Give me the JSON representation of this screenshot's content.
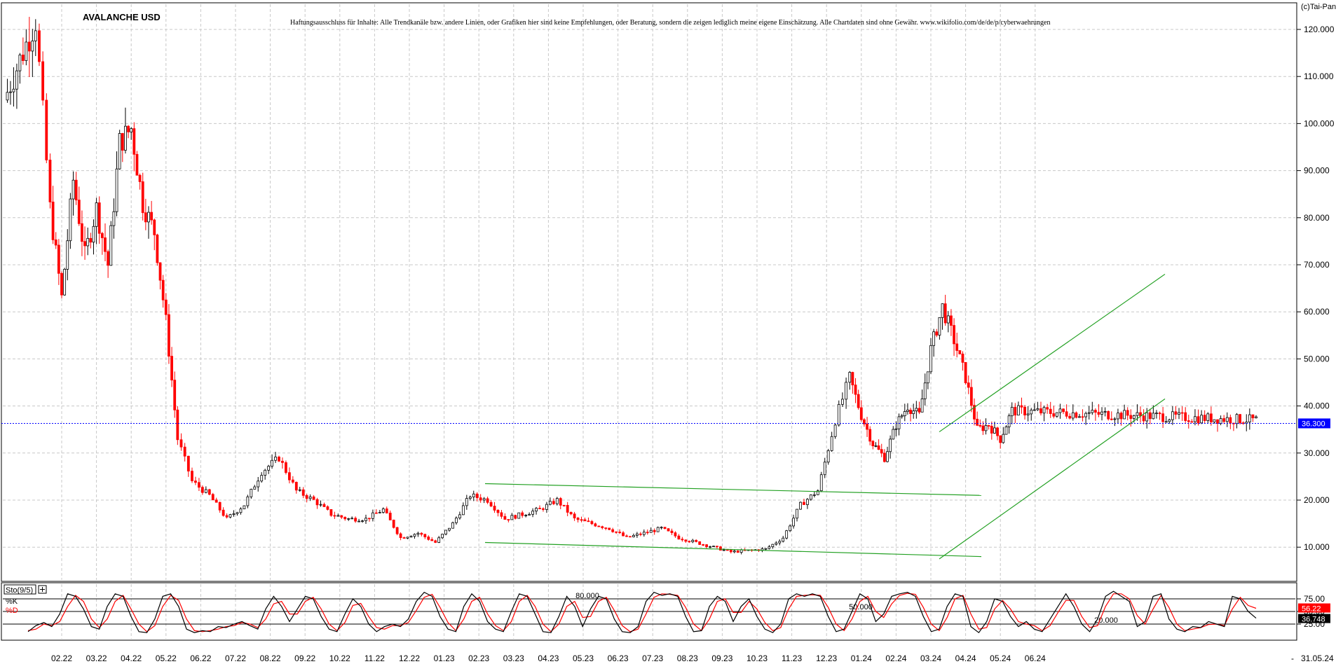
{
  "chart_data": [
    {
      "type": "candlestick",
      "title": "AVALANCHE USD",
      "disclaimer": "Haftungsausschluss für Inhalte: Alle Trendkanäle bzw. andere Linien, oder Grafiken hier sind keine Empfehlungen, oder Beratung, sondern die zeigen lediglich meine eigene Einschätzung. Alle Chartdaten sind ohne Gewähr. www.wikifolio.com/de/de/p/cyberwaehrungen",
      "copyright": "(c)Tai-Pan",
      "x_tick_labels": [
        "02.22",
        "03.22",
        "04.22",
        "05.22",
        "06.22",
        "07.22",
        "08.22",
        "09.22",
        "10.22",
        "11.22",
        "12.22",
        "01.23",
        "02.23",
        "03.23",
        "04.23",
        "05.23",
        "06.23",
        "07.23",
        "08.23",
        "09.23",
        "10.23",
        "11.23",
        "12.23",
        "01.24",
        "02.24",
        "03.24",
        "04.24",
        "05.24",
        "06.24"
      ],
      "x_end_label": "31.05.24",
      "y_ticks": [
        "10.000",
        "20.000",
        "30.000",
        "40.000",
        "50.000",
        "60.000",
        "70.000",
        "80.000",
        "90.000",
        "100.000",
        "110.000",
        "120.000"
      ],
      "ylim": [
        2,
        125
      ],
      "last_price": 36.3,
      "last_price_label": "36.300",
      "grid": true,
      "price_path": [
        [
          "01.22",
          105
        ],
        [
          "01.22",
          122
        ],
        [
          "02.22",
          82
        ],
        [
          "02.22",
          63
        ],
        [
          "02.22",
          88
        ],
        [
          "03.22",
          72
        ],
        [
          "03.22",
          82
        ],
        [
          "03.22",
          70
        ],
        [
          "04.22",
          96
        ],
        [
          "04.22",
          99
        ],
        [
          "04.22",
          83
        ],
        [
          "05.22",
          77
        ],
        [
          "05.22",
          58
        ],
        [
          "05.22",
          33
        ],
        [
          "06.22",
          24
        ],
        [
          "06.22",
          21
        ],
        [
          "07.22",
          16
        ],
        [
          "07.22",
          19
        ],
        [
          "08.22",
          26
        ],
        [
          "08.22",
          29
        ],
        [
          "09.22",
          22
        ],
        [
          "09.22",
          20
        ],
        [
          "10.22",
          17
        ],
        [
          "10.22",
          16
        ],
        [
          "11.22",
          16
        ],
        [
          "11.22",
          18
        ],
        [
          "12.22",
          12
        ],
        [
          "12.22",
          13
        ],
        [
          "01.23",
          11
        ],
        [
          "01.23",
          15
        ],
        [
          "02.23",
          21
        ],
        [
          "02.23",
          20
        ],
        [
          "03.23",
          16
        ],
        [
          "03.23",
          17
        ],
        [
          "04.23",
          18
        ],
        [
          "04.23",
          20
        ],
        [
          "05.23",
          16
        ],
        [
          "05.23",
          15
        ],
        [
          "06.23",
          14
        ],
        [
          "06.23",
          12
        ],
        [
          "07.23",
          13
        ],
        [
          "07.23",
          14
        ],
        [
          "08.23",
          12
        ],
        [
          "08.23",
          11
        ],
        [
          "09.23",
          10
        ],
        [
          "09.23",
          9
        ],
        [
          "10.23",
          9.3
        ],
        [
          "10.23",
          9.6
        ],
        [
          "11.23",
          12
        ],
        [
          "11.23",
          19
        ],
        [
          "12.23",
          22
        ],
        [
          "12.23",
          37
        ],
        [
          "01.24",
          46
        ],
        [
          "01.24",
          38
        ],
        [
          "01.24",
          32
        ],
        [
          "02.24",
          29
        ],
        [
          "02.24",
          36
        ],
        [
          "02.24",
          40
        ],
        [
          "03.24",
          38
        ],
        [
          "03.24",
          52
        ],
        [
          "03.24",
          61
        ],
        [
          "04.24",
          54
        ],
        [
          "04.24",
          46
        ],
        [
          "04.24",
          35
        ],
        [
          "05.24",
          36
        ],
        [
          "05.24",
          33
        ],
        [
          "05.24",
          39
        ],
        [
          "06.24",
          37
        ]
      ],
      "annotations": [
        {
          "name": "falling-channel-upper",
          "from": [
            "12.22",
            23.5
          ],
          "to": [
            "11.23",
            21
          ]
        },
        {
          "name": "falling-channel-lower",
          "from": [
            "12.22",
            11
          ],
          "to": [
            "12.23",
            8
          ]
        },
        {
          "name": "rising-channel-upper",
          "from": [
            "12.23",
            34.5
          ],
          "to": [
            "04.24",
            68
          ]
        },
        {
          "name": "rising-channel-lower",
          "from": [
            "12.23",
            7.5
          ],
          "to": [
            "04.24",
            41.5
          ]
        }
      ],
      "colors": {
        "up": "#000000",
        "down": "#ff0000",
        "channel": "#22a022",
        "price_line": "#0000ff",
        "grid": "#c8c8c8"
      }
    },
    {
      "type": "line",
      "indicator": "Sto(9/5)",
      "ylim": [
        0,
        100
      ],
      "y_ticks": [
        "75.00",
        "50.00",
        "25.00"
      ],
      "levels": [
        {
          "value": 80,
          "label": "80.000"
        },
        {
          "value": 50,
          "label": "50.000"
        },
        {
          "value": 20,
          "label": "20.000"
        }
      ],
      "series": [
        {
          "name": "%K",
          "color": "#000000",
          "last": 36.748,
          "last_label": "36.748"
        },
        {
          "name": "%D",
          "color": "#ff0000",
          "last": 56.22,
          "last_label": "56.22"
        }
      ],
      "k_values": [
        10,
        22,
        28,
        20,
        45,
        85,
        80,
        55,
        20,
        15,
        60,
        85,
        80,
        40,
        10,
        8,
        35,
        80,
        85,
        60,
        15,
        8,
        12,
        10,
        20,
        18,
        25,
        30,
        22,
        15,
        55,
        80,
        60,
        30,
        55,
        80,
        75,
        40,
        15,
        10,
        45,
        75,
        60,
        25,
        10,
        20,
        25,
        20,
        35,
        70,
        88,
        80,
        40,
        15,
        10,
        60,
        85,
        70,
        30,
        15,
        10,
        50,
        85,
        80,
        45,
        10,
        8,
        40,
        80,
        60,
        20,
        55,
        80,
        75,
        35,
        10,
        8,
        20,
        70,
        88,
        82,
        85,
        80,
        40,
        10,
        12,
        60,
        80,
        70,
        30,
        60,
        75,
        40,
        15,
        8,
        25,
        75,
        85,
        80,
        85,
        80,
        40,
        10,
        15,
        50,
        85,
        75,
        30,
        45,
        80,
        85,
        88,
        80,
        40,
        10,
        15,
        60,
        85,
        80,
        20,
        8,
        30,
        75,
        70,
        40,
        20,
        30,
        15,
        10,
        35,
        60,
        85,
        60,
        25,
        10,
        35,
        80,
        90,
        80,
        70,
        20,
        30,
        80,
        85,
        35,
        15,
        10,
        20,
        18,
        30,
        25,
        20,
        80,
        75,
        50,
        36.7
      ],
      "d_values": [
        12,
        15,
        25,
        22,
        30,
        60,
        82,
        70,
        35,
        18,
        35,
        70,
        82,
        55,
        25,
        10,
        22,
        60,
        82,
        72,
        35,
        12,
        10,
        12,
        15,
        20,
        22,
        28,
        25,
        18,
        35,
        65,
        70,
        45,
        45,
        70,
        78,
        55,
        25,
        12,
        28,
        62,
        66,
        40,
        18,
        15,
        22,
        22,
        28,
        52,
        78,
        84,
        58,
        28,
        12,
        35,
        70,
        78,
        45,
        22,
        12,
        30,
        70,
        82,
        60,
        25,
        10,
        25,
        60,
        70,
        38,
        40,
        70,
        78,
        52,
        22,
        10,
        15,
        45,
        78,
        85,
        84,
        82,
        58,
        25,
        12,
        35,
        70,
        75,
        48,
        48,
        70,
        55,
        28,
        12,
        18,
        55,
        80,
        82,
        83,
        82,
        58,
        25,
        12,
        35,
        70,
        80,
        50,
        38,
        65,
        82,
        86,
        84,
        58,
        25,
        12,
        38,
        75,
        82,
        45,
        15,
        18,
        55,
        72,
        55,
        30,
        25,
        22,
        12,
        22,
        48,
        72,
        72,
        40,
        18,
        22,
        60,
        85,
        85,
        75,
        42,
        25,
        55,
        82,
        58,
        25,
        12,
        15,
        18,
        24,
        25,
        22,
        55,
        78,
        62,
        56.22
      ]
    }
  ]
}
